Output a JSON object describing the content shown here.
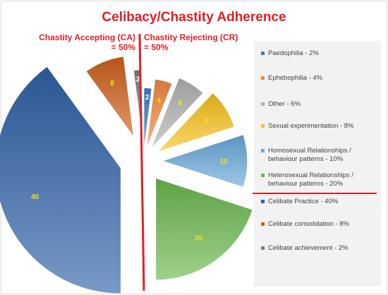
{
  "chart_data": {
    "type": "pie",
    "title": "Celibacy/Chastity Adherence",
    "annotations": {
      "ca": [
        "Chastity Accepting (CA)",
        "= 50%"
      ],
      "cr": [
        "Chastity Rejecting (CR)",
        "= 50%"
      ]
    },
    "legend_position": "right",
    "slices": [
      {
        "label": "Paedophilia - 2%",
        "value": 2,
        "color": "#3a7ec6",
        "group": "CR"
      },
      {
        "label": "Ephebophilia - 4%",
        "value": 4,
        "color": "#f4883f",
        "group": "CR"
      },
      {
        "label": "Other - 6%",
        "value": 6,
        "color": "#b2b2b2",
        "group": "CR"
      },
      {
        "label": "Sexual experimentation - 8%",
        "value": 8,
        "color": "#f8c21a",
        "group": "CR"
      },
      {
        "label": "Homosexual Relationships / behaviour patterns - 10%",
        "value": 10,
        "color": "#68a9da",
        "group": "CR"
      },
      {
        "label": "Heterosexual Relationships / behaviour patterns - 20%",
        "value": 20,
        "color": "#6bb84e",
        "group": "CR"
      },
      {
        "label": "Celibate Practice - 40%",
        "value": 40,
        "color": "#2f62a8",
        "group": "CA"
      },
      {
        "label": "Celibate consolidation - 8%",
        "value": 8,
        "color": "#d0601c",
        "group": "CA"
      },
      {
        "label": "Celibate achievement - 2%",
        "value": 2,
        "color": "#7f7f7f",
        "group": "CA"
      }
    ]
  }
}
